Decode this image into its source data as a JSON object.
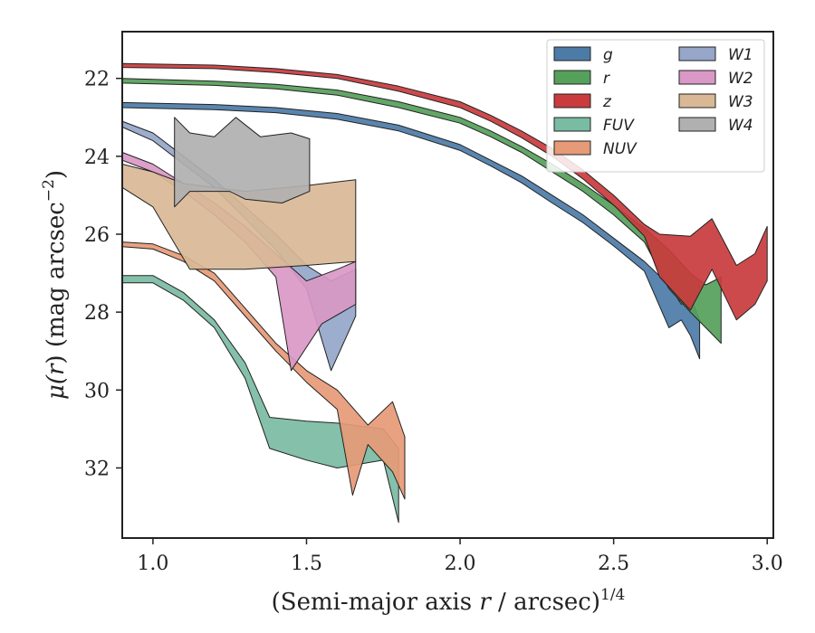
{
  "chart_data": {
    "type": "area",
    "xlabel_main": "(Semi-major axis ",
    "xlabel_var": "r",
    "xlabel_tail": " / arcsec)",
    "xlabel_exp": "1/4",
    "ylabel_main": "μ(",
    "ylabel_var": "r",
    "ylabel_tail": ") (mag arcsec",
    "ylabel_exp": "−2",
    "ylabel_close": ")",
    "xlim": [
      0.9,
      3.02
    ],
    "ylim": [
      33.8,
      20.8
    ],
    "y_inverted": true,
    "xticks": [
      1.0,
      1.5,
      2.0,
      2.5,
      3.0
    ],
    "xtick_labels": [
      "1.0",
      "1.5",
      "2.0",
      "2.5",
      "3.0"
    ],
    "yticks": [
      22,
      24,
      26,
      28,
      30,
      32
    ],
    "ytick_labels": [
      "22",
      "24",
      "26",
      "28",
      "30",
      "32"
    ],
    "grid": false,
    "legend_position": "top-right",
    "legend_columns": 2,
    "series": [
      {
        "name": "g",
        "color": "#4c7ba7",
        "upper": [
          [
            0.9,
            22.62
          ],
          [
            1.2,
            22.67
          ],
          [
            1.4,
            22.75
          ],
          [
            1.6,
            22.9
          ],
          [
            1.8,
            23.2
          ],
          [
            2.0,
            23.7
          ],
          [
            2.1,
            24.1
          ],
          [
            2.2,
            24.5
          ],
          [
            2.3,
            25.0
          ],
          [
            2.4,
            25.5
          ],
          [
            2.5,
            26.1
          ],
          [
            2.6,
            26.7
          ],
          [
            2.68,
            27.3
          ],
          [
            2.72,
            27.8
          ],
          [
            2.75,
            27.6
          ],
          [
            2.78,
            28.2
          ]
        ],
        "lower": [
          [
            0.9,
            22.75
          ],
          [
            1.2,
            22.8
          ],
          [
            1.4,
            22.88
          ],
          [
            1.6,
            23.05
          ],
          [
            1.8,
            23.35
          ],
          [
            2.0,
            23.85
          ],
          [
            2.1,
            24.25
          ],
          [
            2.2,
            24.68
          ],
          [
            2.3,
            25.2
          ],
          [
            2.4,
            25.7
          ],
          [
            2.5,
            26.3
          ],
          [
            2.6,
            26.95
          ],
          [
            2.68,
            28.4
          ],
          [
            2.72,
            28.2
          ],
          [
            2.75,
            28.6
          ],
          [
            2.78,
            29.2
          ]
        ]
      },
      {
        "name": "r",
        "color": "#55a05a",
        "upper": [
          [
            0.9,
            22.0
          ],
          [
            1.2,
            22.07
          ],
          [
            1.4,
            22.15
          ],
          [
            1.6,
            22.3
          ],
          [
            1.8,
            22.6
          ],
          [
            2.0,
            23.0
          ],
          [
            2.1,
            23.35
          ],
          [
            2.2,
            23.75
          ],
          [
            2.3,
            24.2
          ],
          [
            2.4,
            24.7
          ],
          [
            2.5,
            25.25
          ],
          [
            2.6,
            25.85
          ],
          [
            2.68,
            26.4
          ],
          [
            2.75,
            27.0
          ],
          [
            2.8,
            27.3
          ],
          [
            2.85,
            27.1
          ]
        ],
        "lower": [
          [
            0.9,
            22.12
          ],
          [
            1.2,
            22.18
          ],
          [
            1.4,
            22.27
          ],
          [
            1.6,
            22.43
          ],
          [
            1.8,
            22.75
          ],
          [
            2.0,
            23.15
          ],
          [
            2.1,
            23.5
          ],
          [
            2.2,
            23.9
          ],
          [
            2.3,
            24.4
          ],
          [
            2.4,
            24.9
          ],
          [
            2.5,
            25.5
          ],
          [
            2.6,
            26.2
          ],
          [
            2.68,
            27.4
          ],
          [
            2.75,
            28.0
          ],
          [
            2.8,
            28.4
          ],
          [
            2.85,
            28.8
          ]
        ]
      },
      {
        "name": "z",
        "color": "#c93b3d",
        "upper": [
          [
            0.9,
            21.62
          ],
          [
            1.2,
            21.66
          ],
          [
            1.4,
            21.75
          ],
          [
            1.6,
            21.9
          ],
          [
            1.8,
            22.2
          ],
          [
            2.0,
            22.6
          ],
          [
            2.1,
            22.95
          ],
          [
            2.2,
            23.35
          ],
          [
            2.3,
            23.8
          ],
          [
            2.4,
            24.35
          ],
          [
            2.5,
            25.0
          ],
          [
            2.6,
            25.75
          ],
          [
            2.65,
            26.0
          ],
          [
            2.75,
            26.05
          ],
          [
            2.82,
            25.6
          ],
          [
            2.9,
            26.8
          ],
          [
            2.96,
            26.5
          ],
          [
            3.0,
            25.8
          ]
        ],
        "lower": [
          [
            0.9,
            21.72
          ],
          [
            1.2,
            21.75
          ],
          [
            1.4,
            21.85
          ],
          [
            1.6,
            22.0
          ],
          [
            1.8,
            22.33
          ],
          [
            2.0,
            22.75
          ],
          [
            2.1,
            23.1
          ],
          [
            2.2,
            23.52
          ],
          [
            2.3,
            24.0
          ],
          [
            2.4,
            24.58
          ],
          [
            2.5,
            25.25
          ],
          [
            2.6,
            26.05
          ],
          [
            2.65,
            27.1
          ],
          [
            2.75,
            27.95
          ],
          [
            2.82,
            26.9
          ],
          [
            2.9,
            28.2
          ],
          [
            2.96,
            27.8
          ],
          [
            3.0,
            27.2
          ]
        ]
      },
      {
        "name": "FUV",
        "color": "#79bba3",
        "upper": [
          [
            0.9,
            27.06
          ],
          [
            1.0,
            27.06
          ],
          [
            1.1,
            27.5
          ],
          [
            1.2,
            28.2
          ],
          [
            1.3,
            29.3
          ],
          [
            1.38,
            30.7
          ],
          [
            1.5,
            30.8
          ],
          [
            1.6,
            30.85
          ],
          [
            1.75,
            31.0
          ],
          [
            1.8,
            31.5
          ]
        ],
        "lower": [
          [
            0.9,
            27.25
          ],
          [
            1.0,
            27.25
          ],
          [
            1.1,
            27.7
          ],
          [
            1.2,
            28.4
          ],
          [
            1.3,
            29.7
          ],
          [
            1.38,
            31.5
          ],
          [
            1.5,
            31.8
          ],
          [
            1.6,
            32.0
          ],
          [
            1.75,
            31.8
          ],
          [
            1.8,
            33.4
          ]
        ]
      },
      {
        "name": "NUV",
        "color": "#e69a77",
        "upper": [
          [
            0.9,
            26.2
          ],
          [
            1.0,
            26.25
          ],
          [
            1.1,
            26.55
          ],
          [
            1.2,
            27.0
          ],
          [
            1.3,
            27.9
          ],
          [
            1.4,
            28.8
          ],
          [
            1.5,
            29.5
          ],
          [
            1.6,
            30.0
          ],
          [
            1.7,
            30.9
          ],
          [
            1.78,
            30.3
          ],
          [
            1.82,
            31.2
          ]
        ],
        "lower": [
          [
            0.9,
            26.32
          ],
          [
            1.0,
            26.38
          ],
          [
            1.1,
            26.7
          ],
          [
            1.2,
            27.2
          ],
          [
            1.3,
            28.1
          ],
          [
            1.4,
            29.0
          ],
          [
            1.5,
            29.8
          ],
          [
            1.6,
            30.5
          ],
          [
            1.65,
            32.7
          ],
          [
            1.7,
            31.4
          ],
          [
            1.78,
            32.1
          ],
          [
            1.82,
            32.8
          ]
        ]
      },
      {
        "name": "W1",
        "color": "#95a6c9",
        "upper": [
          [
            0.9,
            23.1
          ],
          [
            1.0,
            23.4
          ],
          [
            1.1,
            24.0
          ],
          [
            1.2,
            24.6
          ],
          [
            1.3,
            25.3
          ],
          [
            1.4,
            26.0
          ],
          [
            1.5,
            26.8
          ],
          [
            1.58,
            27.2
          ],
          [
            1.66,
            26.9
          ]
        ],
        "lower": [
          [
            0.9,
            23.25
          ],
          [
            1.0,
            23.6
          ],
          [
            1.1,
            24.2
          ],
          [
            1.2,
            24.8
          ],
          [
            1.3,
            25.6
          ],
          [
            1.4,
            26.4
          ],
          [
            1.5,
            27.4
          ],
          [
            1.58,
            29.5
          ],
          [
            1.66,
            28.1
          ]
        ]
      },
      {
        "name": "W2",
        "color": "#d998c6",
        "upper": [
          [
            0.9,
            23.9
          ],
          [
            1.0,
            24.2
          ],
          [
            1.1,
            24.7
          ],
          [
            1.2,
            25.2
          ],
          [
            1.3,
            25.8
          ],
          [
            1.4,
            26.5
          ],
          [
            1.5,
            27.2
          ],
          [
            1.6,
            26.9
          ],
          [
            1.66,
            26.7
          ]
        ],
        "lower": [
          [
            0.9,
            24.1
          ],
          [
            1.0,
            24.4
          ],
          [
            1.1,
            24.9
          ],
          [
            1.2,
            25.5
          ],
          [
            1.3,
            26.2
          ],
          [
            1.4,
            27.1
          ],
          [
            1.45,
            29.5
          ],
          [
            1.55,
            28.3
          ],
          [
            1.66,
            27.8
          ]
        ]
      },
      {
        "name": "W3",
        "color": "#d9b896",
        "upper": [
          [
            0.9,
            24.2
          ],
          [
            1.0,
            24.4
          ],
          [
            1.1,
            24.7
          ],
          [
            1.3,
            24.9
          ],
          [
            1.5,
            24.75
          ],
          [
            1.66,
            24.6
          ]
        ],
        "lower": [
          [
            0.9,
            24.8
          ],
          [
            1.0,
            25.3
          ],
          [
            1.12,
            26.9
          ],
          [
            1.3,
            26.9
          ],
          [
            1.5,
            26.8
          ],
          [
            1.66,
            26.7
          ]
        ]
      },
      {
        "name": "W4",
        "color": "#b0b0b0",
        "upper": [
          [
            1.07,
            23.0
          ],
          [
            1.12,
            23.4
          ],
          [
            1.2,
            23.5
          ],
          [
            1.27,
            23.0
          ],
          [
            1.35,
            23.5
          ],
          [
            1.45,
            23.4
          ],
          [
            1.51,
            23.55
          ]
        ],
        "lower": [
          [
            1.07,
            25.3
          ],
          [
            1.12,
            24.9
          ],
          [
            1.2,
            24.9
          ],
          [
            1.25,
            24.9
          ],
          [
            1.3,
            25.1
          ],
          [
            1.42,
            25.2
          ],
          [
            1.51,
            24.9
          ]
        ]
      }
    ]
  }
}
